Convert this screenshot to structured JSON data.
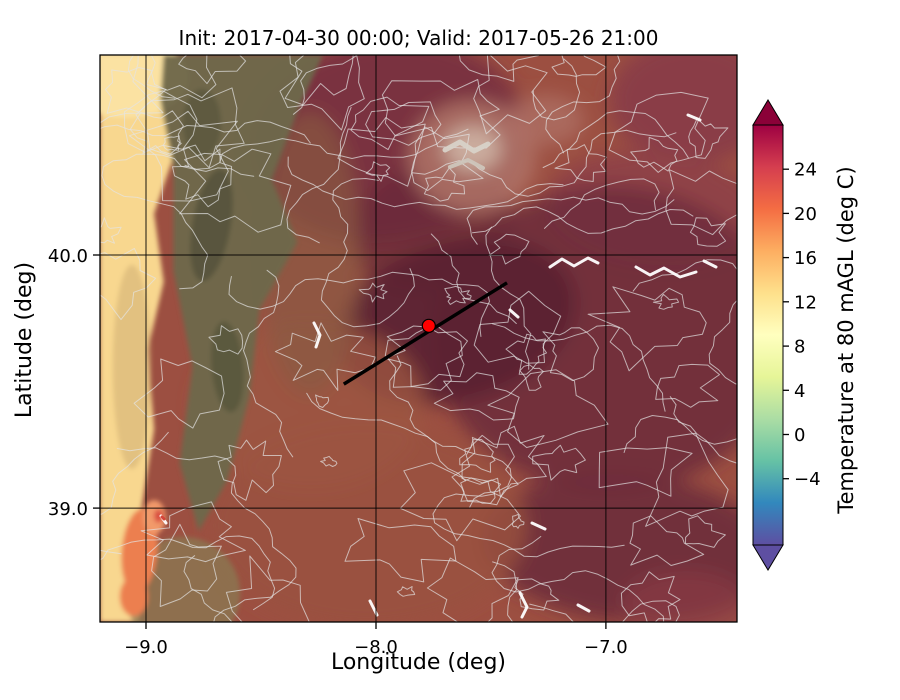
{
  "figure": {
    "title": "Init: 2017-04-30 00:00; Valid: 2017-05-26 21:00",
    "xlabel": "Longitude (deg)",
    "ylabel": "Latitude (deg)",
    "colorbar_label": "Temperature at 80 mAGL (deg C)"
  },
  "chart_data": {
    "type": "heatmap",
    "title": "Init: 2017-04-30 00:00; Valid: 2017-05-26 21:00",
    "xlabel": "Longitude (deg)",
    "ylabel": "Latitude (deg)",
    "xlim": [
      -9.2,
      -6.43
    ],
    "ylim": [
      38.55,
      40.79
    ],
    "xticks": [
      -9.0,
      -8.0,
      -7.0
    ],
    "xtick_labels": [
      "−9.0",
      "−8.0",
      "−7.0"
    ],
    "yticks": [
      40.0,
      39.0
    ],
    "ytick_labels": [
      "40.0",
      "39.0"
    ],
    "grid": true,
    "base_color": "#9c4f41",
    "colorbar": {
      "label": "Temperature at 80 mAGL (deg C)",
      "vmin": -10,
      "vmax": 28,
      "extend": "both",
      "ticks": [
        24,
        20,
        16,
        12,
        8,
        4,
        0,
        -4
      ],
      "tick_labels": [
        "24",
        "20",
        "16",
        "12",
        "8",
        "4",
        "0",
        "−4"
      ],
      "over_color": "#8b0138",
      "under_color": "#5e4fa2",
      "stops": [
        {
          "v": -10,
          "c": "#5e4fa2"
        },
        {
          "v": -6.2,
          "c": "#3288bd"
        },
        {
          "v": -2.4,
          "c": "#66c2a5"
        },
        {
          "v": 1.4,
          "c": "#abdda4"
        },
        {
          "v": 5.2,
          "c": "#e6f598"
        },
        {
          "v": 9.0,
          "c": "#ffffbf"
        },
        {
          "v": 12.8,
          "c": "#fee08b"
        },
        {
          "v": 16.6,
          "c": "#fdae61"
        },
        {
          "v": 20.4,
          "c": "#f46d43"
        },
        {
          "v": 24.2,
          "c": "#d53e4f"
        },
        {
          "v": 28,
          "c": "#9e0142"
        }
      ]
    },
    "cross_section_line": {
      "from": [
        -8.14,
        39.49
      ],
      "to": [
        -7.43,
        39.89
      ],
      "color": "#000000"
    },
    "marker": {
      "lon": -7.77,
      "lat": 39.72,
      "color": "#ff0000"
    },
    "field_regions": [
      {
        "x": 0.45,
        "y": 0.15,
        "rx": 0.22,
        "ry": 0.18,
        "rot": -8,
        "c": "#7a3340"
      },
      {
        "x": 0.93,
        "y": 0.08,
        "rx": 0.13,
        "ry": 0.11,
        "c": "#8a3d46"
      },
      {
        "x": 0.87,
        "y": 0.27,
        "rx": 0.17,
        "ry": 0.1,
        "rot": 5,
        "c": "#8d4048",
        "op": 0.85
      },
      {
        "x": 0.8,
        "y": 0.5,
        "rx": 0.28,
        "ry": 0.27,
        "c": "#6f2c3c",
        "op": 0.9
      },
      {
        "x": 0.52,
        "y": 0.3,
        "rx": 0.13,
        "ry": 0.11,
        "rot": -20,
        "c": "#6a2a39",
        "op": 0.8
      },
      {
        "x": 0.56,
        "y": 0.47,
        "rx": 0.19,
        "ry": 0.14,
        "rot": -16,
        "c": "#5c2231",
        "op": 0.95
      },
      {
        "x": 0.83,
        "y": 0.87,
        "rx": 0.23,
        "ry": 0.13,
        "rot": 5,
        "c": "#6d2b3a",
        "op": 0.9
      },
      {
        "x": 0.42,
        "y": 0.83,
        "rx": 0.25,
        "ry": 0.18,
        "c": "#9a5240",
        "op": 0.85
      },
      {
        "x": 0.33,
        "y": 0.62,
        "rx": 0.18,
        "ry": 0.15,
        "c": "#9c5542",
        "op": 0.8
      },
      {
        "x": 0.33,
        "y": 0.35,
        "rx": 0.08,
        "ry": 0.25,
        "c": "#8a5a42",
        "op": 0.7
      },
      {
        "x": 0.585,
        "y": 0.18,
        "rx": 0.1,
        "ry": 0.1,
        "c": "#b07468",
        "op": 0.85
      },
      {
        "x": 0.585,
        "y": 0.165,
        "rx": 0.045,
        "ry": 0.04,
        "c": "#cdb3a4",
        "op": 0.9
      },
      {
        "x": 0.7,
        "y": 0.115,
        "rx": 0.06,
        "ry": 0.045,
        "c": "#b07468",
        "op": 0.7
      },
      {
        "x": 0.92,
        "y": 0.97,
        "rx": 0.1,
        "ry": 0.06,
        "c": "#8d4048",
        "op": 0.6
      },
      {
        "coast": true,
        "pts": [
          [
            0,
            0
          ],
          [
            0.115,
            0
          ],
          [
            0.1,
            0.08
          ],
          [
            0.115,
            0.18
          ],
          [
            0.085,
            0.28
          ],
          [
            0.1,
            0.4
          ],
          [
            0.075,
            0.52
          ],
          [
            0.085,
            0.66
          ],
          [
            0.065,
            0.8
          ],
          [
            0.075,
            0.92
          ],
          [
            0.06,
            1
          ],
          [
            0,
            1
          ]
        ],
        "c": "#f8d78f"
      },
      {
        "coast": true,
        "x": 0.04,
        "y": 0.04,
        "rx": 0.1,
        "ry": 0.07,
        "c": "#fbe3a4",
        "op": 0.9
      },
      {
        "coast": true,
        "pts": [
          [
            0.1,
            0
          ],
          [
            0.35,
            0
          ],
          [
            0.31,
            0.1
          ],
          [
            0.27,
            0.22
          ],
          [
            0.31,
            0.33
          ],
          [
            0.25,
            0.45
          ],
          [
            0.235,
            0.6
          ],
          [
            0.2,
            0.75
          ],
          [
            0.155,
            0.84
          ],
          [
            0.125,
            0.72
          ],
          [
            0.145,
            0.55
          ],
          [
            0.115,
            0.38
          ],
          [
            0.115,
            0.2
          ],
          [
            0.095,
            0.08
          ]
        ],
        "c": "#6e684a",
        "op": 0.96
      },
      {
        "coast": true,
        "x": 0.175,
        "y": 0.3,
        "rx": 0.03,
        "ry": 0.1,
        "rot": 10,
        "c": "#53513a",
        "op": 0.8
      },
      {
        "coast": true,
        "x": 0.2,
        "y": 0.55,
        "rx": 0.025,
        "ry": 0.08,
        "rot": -5,
        "c": "#53513a",
        "op": 0.7
      },
      {
        "coast": true,
        "x": 0.16,
        "y": 0.12,
        "rx": 0.03,
        "ry": 0.06,
        "c": "#53513a",
        "op": 0.6
      },
      {
        "coast": true,
        "x": 0.05,
        "y": 0.55,
        "rx": 0.03,
        "ry": 0.18,
        "c": "#cfae74",
        "op": 0.55
      },
      {
        "coast": true,
        "x": 0.13,
        "y": 0.95,
        "rx": 0.09,
        "ry": 0.1,
        "c": "#8a7a52",
        "op": 0.75
      },
      {
        "coast": true,
        "x": 0.062,
        "y": 0.875,
        "rx": 0.028,
        "ry": 0.075,
        "rot": 5,
        "c": "#ec7f50"
      },
      {
        "coast": true,
        "x": 0.085,
        "y": 0.815,
        "rx": 0.018,
        "ry": 0.03,
        "c": "#f29a6b"
      },
      {
        "coast": true,
        "x": 0.053,
        "y": 0.955,
        "rx": 0.022,
        "ry": 0.035,
        "c": "#ec7f50"
      },
      {
        "coast": true,
        "x": 0.092,
        "y": 0.813,
        "rx": 0.007,
        "ry": 0.012,
        "c": "#d94b3f"
      }
    ],
    "contours": {
      "closed": 70,
      "open": 34,
      "color": "#e4e4e4",
      "opacity": 0.7,
      "seed": 11
    },
    "white_features": [
      {
        "pts": [
          [
            450,
            212
          ],
          [
            462,
            204
          ],
          [
            474,
            211
          ],
          [
            488,
            203
          ],
          [
            498,
            208
          ]
        ]
      },
      {
        "pts": [
          [
            536,
            212
          ],
          [
            550,
            220
          ],
          [
            564,
            213
          ],
          [
            580,
            222
          ],
          [
            596,
            217
          ]
        ]
      },
      {
        "pts": [
          [
            604,
            206
          ],
          [
            616,
            212
          ]
        ]
      },
      {
        "pts": [
          [
            432,
            468
          ],
          [
            445,
            474
          ]
        ]
      },
      {
        "pts": [
          [
            420,
            538
          ],
          [
            427,
            552
          ],
          [
            422,
            562
          ]
        ]
      },
      {
        "pts": [
          [
            478,
            550
          ],
          [
            489,
            556
          ]
        ]
      },
      {
        "pts": [
          [
            270,
            546
          ],
          [
            277,
            560
          ]
        ]
      },
      {
        "pts": [
          [
            214,
            268
          ],
          [
            220,
            280
          ],
          [
            216,
            292
          ]
        ]
      },
      {
        "pts": [
          [
            410,
            255
          ],
          [
            418,
            262
          ]
        ]
      },
      {
        "pts": [
          [
            588,
            60
          ],
          [
            600,
            65
          ]
        ]
      },
      {
        "pts": [
          [
            61,
            461
          ],
          [
            66,
            468
          ]
        ]
      },
      {
        "pts": [
          [
            62,
            462
          ],
          [
            64,
            464
          ]
        ],
        "c": "#d23b2f",
        "w": 3
      },
      {
        "pts": [
          [
            345,
            95
          ],
          [
            360,
            87
          ],
          [
            374,
            96
          ],
          [
            388,
            89
          ]
        ],
        "c": "#d8d2c8",
        "w": 5
      },
      {
        "pts": [
          [
            350,
            112
          ],
          [
            368,
            105
          ],
          [
            383,
            113
          ]
        ],
        "c": "#cdc5ba",
        "w": 4
      }
    ]
  }
}
